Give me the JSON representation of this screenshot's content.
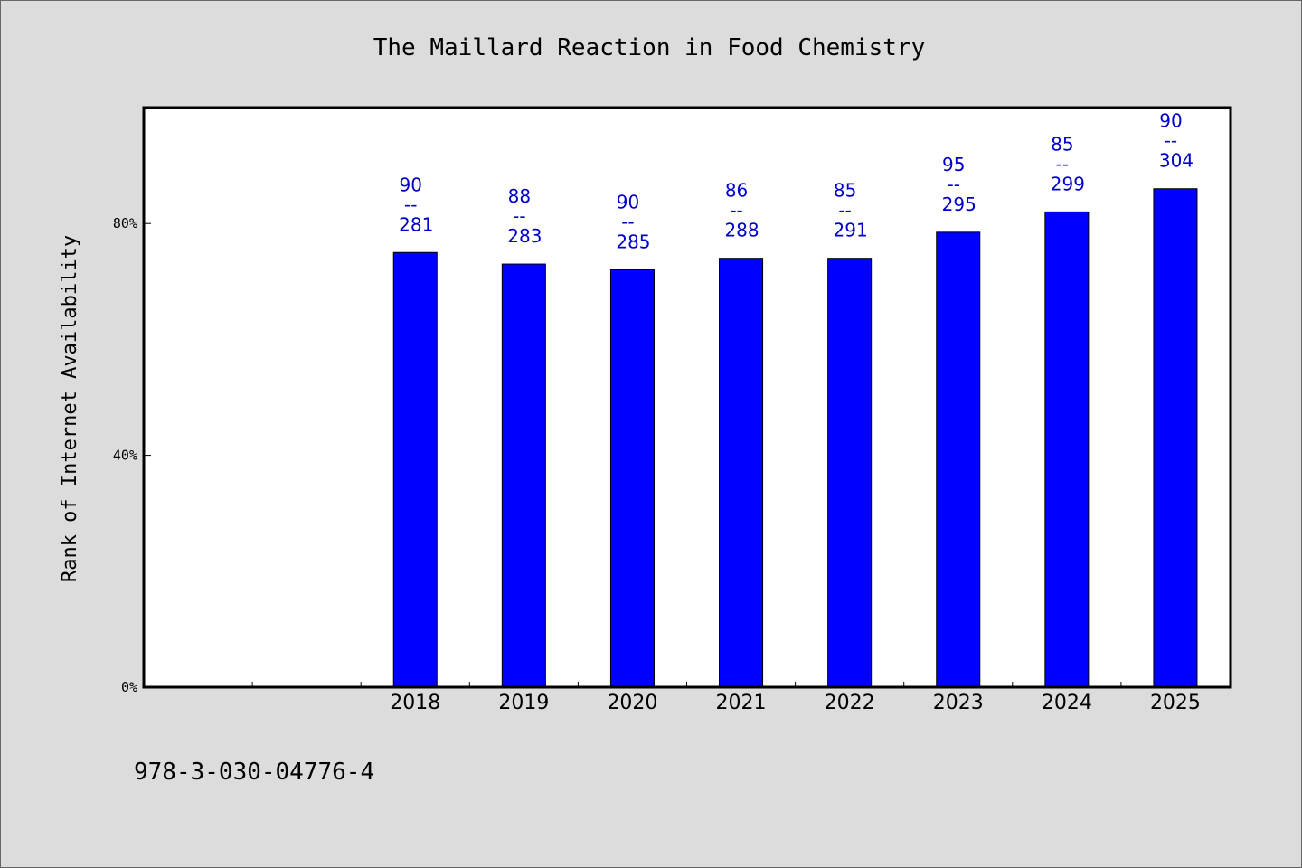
{
  "chart_data": {
    "type": "bar",
    "title": "The Maillard Reaction in Food Chemistry",
    "xlabel": "",
    "ylabel": "Rank of Internet Availability",
    "y_unit": "%",
    "ylim": [
      0,
      100
    ],
    "yticks": [
      {
        "value": 0,
        "label": "0%"
      },
      {
        "value": 40,
        "label": "40%"
      },
      {
        "value": 80,
        "label": "80%"
      }
    ],
    "categories": [
      "",
      "",
      "2018",
      "2019",
      "2020",
      "2021",
      "2022",
      "2023",
      "2024",
      "2025"
    ],
    "values": [
      null,
      null,
      75,
      73,
      72,
      74,
      74,
      78.5,
      82,
      86
    ],
    "bar_labels": [
      null,
      null,
      {
        "top": "90",
        "bottom": "281"
      },
      {
        "top": "88",
        "bottom": "283"
      },
      {
        "top": "90",
        "bottom": "285"
      },
      {
        "top": "86",
        "bottom": "288"
      },
      {
        "top": "85",
        "bottom": "291"
      },
      {
        "top": "95",
        "bottom": "295"
      },
      {
        "top": "85",
        "bottom": "299"
      },
      {
        "top": "90",
        "bottom": "304"
      }
    ],
    "label_separator": "--",
    "grid": false,
    "legend": "none",
    "colors": {
      "bar": "#0000ff",
      "bar_edge": "#000000",
      "label": "#0000cc",
      "plot_bg": "#ffffff",
      "page_bg": "#dcdcdc"
    }
  },
  "footer": {
    "isbn": "978-3-030-04776-4"
  }
}
